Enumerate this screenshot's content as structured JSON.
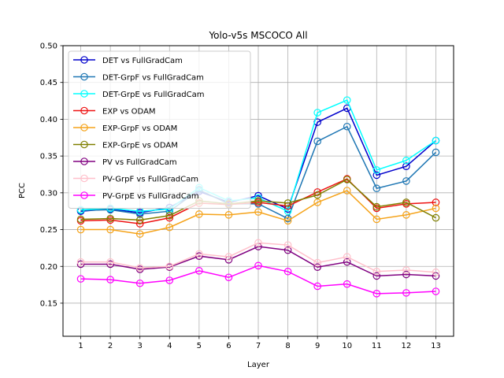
{
  "chart_data": {
    "type": "line",
    "title": "Yolo-v5s MSCOCO All",
    "xlabel": "Layer",
    "ylabel": "PCC",
    "x": [
      1,
      2,
      3,
      4,
      5,
      6,
      7,
      8,
      9,
      10,
      11,
      12,
      13
    ],
    "xlim": [
      0.4,
      13.6
    ],
    "ylim": [
      0.105,
      0.5
    ],
    "yticks": [
      "0.15",
      "0.20",
      "0.25",
      "0.30",
      "0.35",
      "0.40",
      "0.45",
      "0.50"
    ],
    "xticks": [
      "1",
      "2",
      "3",
      "4",
      "5",
      "6",
      "7",
      "8",
      "9",
      "10",
      "11",
      "12",
      "13"
    ],
    "grid": true,
    "legend_position": "top-left",
    "marker": "hollow-circle",
    "series": [
      {
        "name": "DET vs FullGradCam",
        "color": "#0000cc",
        "values": [
          0.275,
          0.278,
          0.273,
          0.28,
          0.302,
          0.287,
          0.296,
          0.278,
          0.396,
          0.415,
          0.324,
          0.336,
          0.371
        ]
      },
      {
        "name": "DET-GrpF vs FullGradCam",
        "color": "#1f77b4",
        "values": [
          0.276,
          0.277,
          0.271,
          0.275,
          0.304,
          0.285,
          0.285,
          0.265,
          0.37,
          0.39,
          0.306,
          0.316,
          0.355
        ]
      },
      {
        "name": "DET-GrpE vs FullGradCam",
        "color": "#00ffff",
        "values": [
          0.277,
          0.279,
          0.275,
          0.278,
          0.307,
          0.289,
          0.293,
          0.275,
          0.409,
          0.426,
          0.331,
          0.344,
          0.371
        ]
      },
      {
        "name": "EXP vs ODAM",
        "color": "#ee1111",
        "values": [
          0.262,
          0.263,
          0.258,
          0.266,
          0.286,
          0.284,
          0.287,
          0.282,
          0.301,
          0.319,
          0.279,
          0.285,
          0.287
        ]
      },
      {
        "name": "EXP-GrpF vs ODAM",
        "color": "#f5a31a",
        "values": [
          0.25,
          0.25,
          0.244,
          0.253,
          0.271,
          0.27,
          0.274,
          0.262,
          0.287,
          0.303,
          0.264,
          0.27,
          0.279
        ]
      },
      {
        "name": "EXP-GrpE vs ODAM",
        "color": "#808000",
        "values": [
          0.264,
          0.265,
          0.263,
          0.269,
          0.289,
          0.285,
          0.289,
          0.286,
          0.297,
          0.318,
          0.281,
          0.287,
          0.266
        ]
      },
      {
        "name": "PV vs FullGradCam",
        "color": "#800080",
        "values": [
          0.203,
          0.203,
          0.196,
          0.199,
          0.214,
          0.209,
          0.227,
          0.222,
          0.199,
          0.206,
          0.187,
          0.189,
          0.187
        ]
      },
      {
        "name": "PV-GrpF vs FullGradCam",
        "color": "#ffc0cb",
        "values": [
          0.206,
          0.206,
          0.198,
          0.2,
          0.217,
          0.213,
          0.232,
          0.229,
          0.205,
          0.213,
          0.193,
          0.195,
          0.192
        ]
      },
      {
        "name": "PV-GrpE vs FullGradCam",
        "color": "#ff00ff",
        "values": [
          0.183,
          0.182,
          0.177,
          0.181,
          0.194,
          0.185,
          0.201,
          0.193,
          0.173,
          0.176,
          0.163,
          0.164,
          0.166
        ]
      }
    ]
  }
}
